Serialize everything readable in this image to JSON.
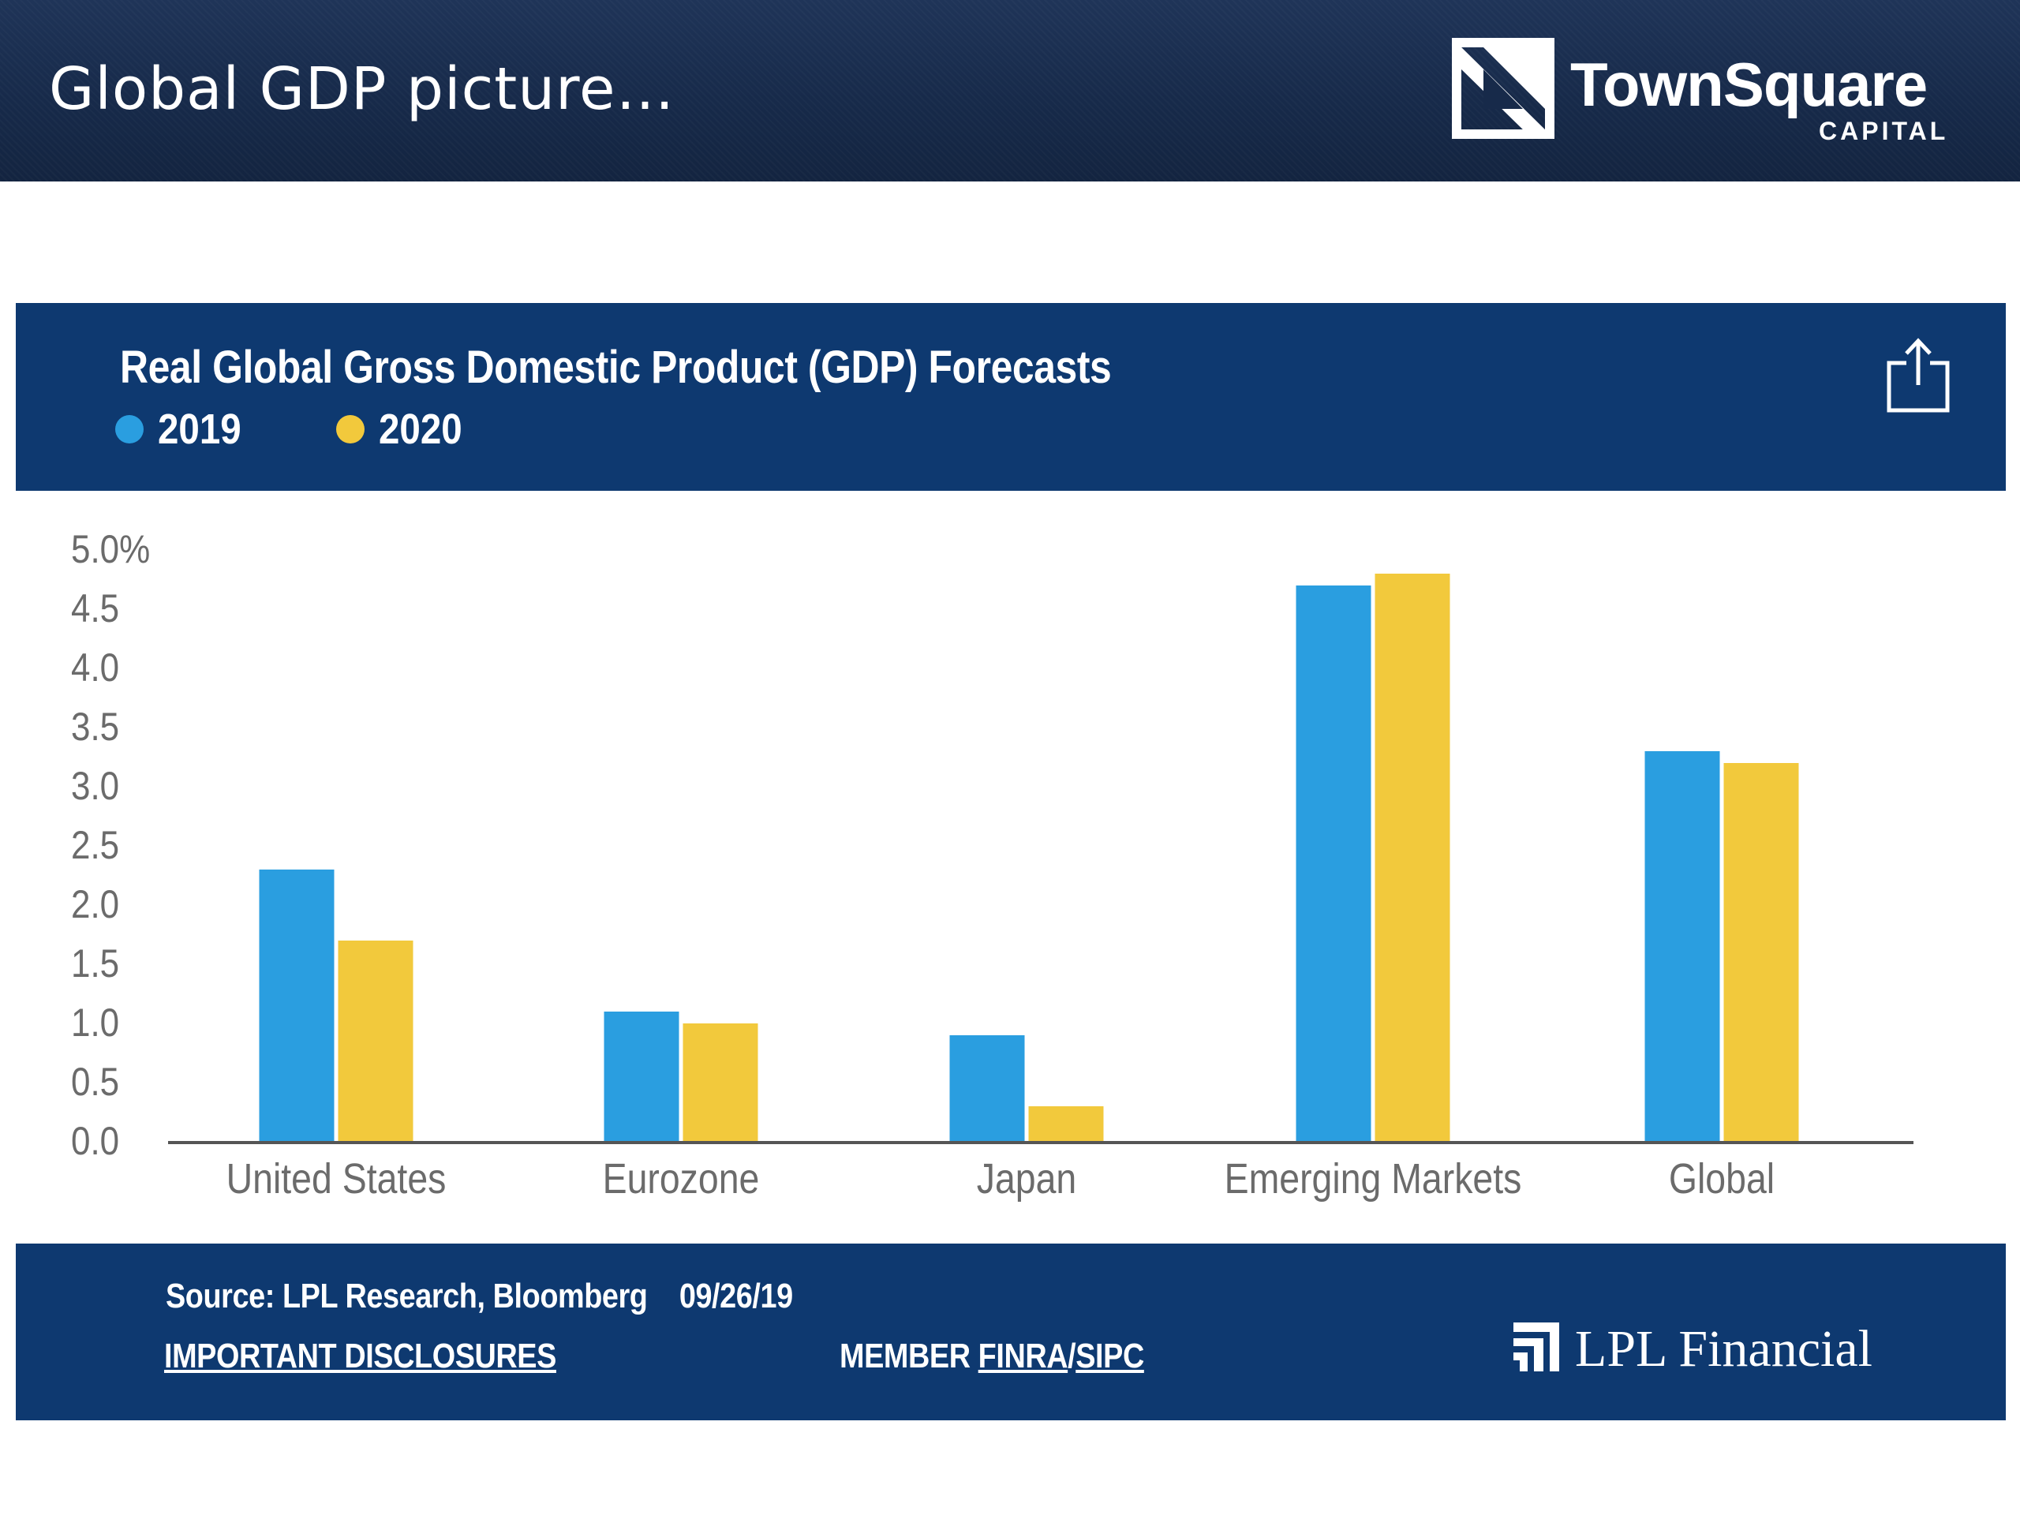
{
  "slide": {
    "title": "Global GDP picture…",
    "brand_name": "TownSquare",
    "brand_sub": "CAPITAL"
  },
  "colors": {
    "header_bg": "#172a4a",
    "card_bg": "#0e3970",
    "series_2019": "#2a9ee0",
    "series_2020": "#f2c93c"
  },
  "icons": {
    "brand": "townsquare-logo-icon",
    "share": "share-icon",
    "lpl": "lpl-logo-icon"
  },
  "chart_data": {
    "type": "bar",
    "title": "Real Global Gross Domestic Product (GDP) Forecasts",
    "categories": [
      "United States",
      "Eurozone",
      "Japan",
      "Emerging Markets",
      "Global"
    ],
    "series": [
      {
        "name": "2019",
        "color": "#2a9ee0",
        "values": [
          2.3,
          1.1,
          0.9,
          4.7,
          3.3
        ]
      },
      {
        "name": "2020",
        "color": "#f2c93c",
        "values": [
          1.7,
          1.0,
          0.3,
          4.8,
          3.2
        ]
      }
    ],
    "ylim": [
      0,
      5
    ],
    "yticks": [
      "0.0",
      "0.5",
      "1.0",
      "1.5",
      "2.0",
      "2.5",
      "3.0",
      "3.5",
      "4.0",
      "4.5",
      "5.0%"
    ],
    "xlabel": "",
    "ylabel": "",
    "grid": false,
    "legend": "top-left"
  },
  "footer": {
    "source": "Source: LPL Research, Bloomberg    09/26/19",
    "disclosures": "IMPORTANT DISCLOSURES",
    "member_prefix": "MEMBER ",
    "finra": "FINRA",
    "slash": "/",
    "sipc": "SIPC",
    "lpl_name": "LPL Financial"
  }
}
